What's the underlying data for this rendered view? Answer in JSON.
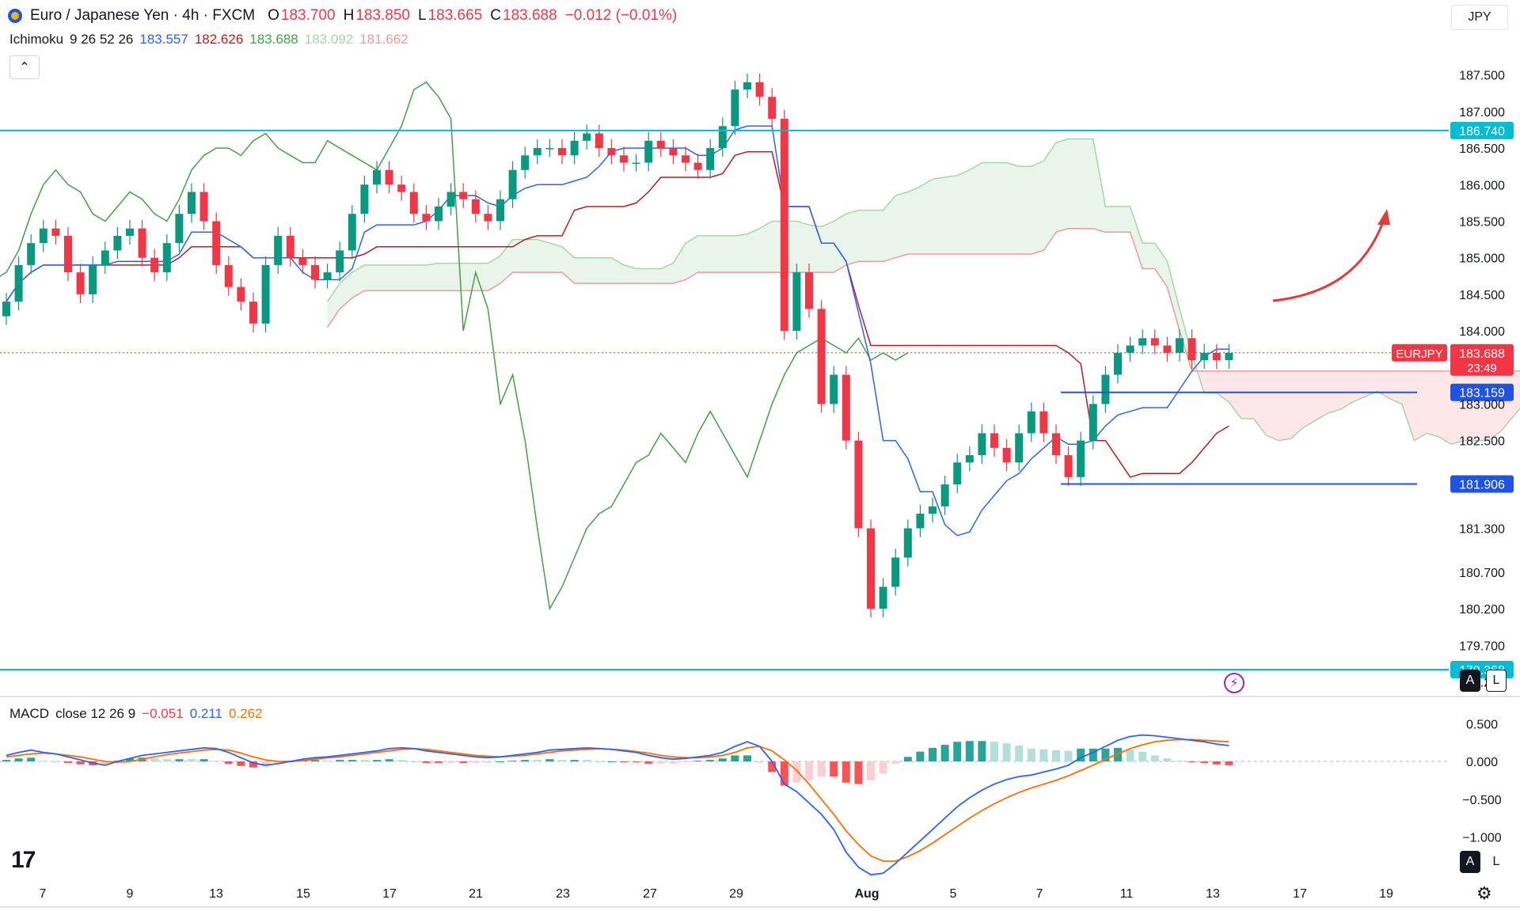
{
  "header": {
    "symbol_title": "Euro / Japanese Yen · 4h · FXCM",
    "open_label": "O",
    "open": "183.700",
    "high_label": "H",
    "high": "183.850",
    "low_label": "L",
    "low": "183.665",
    "close_label": "C",
    "close": "183.688",
    "change": "−0.012 (−0.01%)"
  },
  "currency_button": "JPY",
  "collapse_icon": "chevron-up-icon",
  "indicators": {
    "ichimoku": {
      "name": "Ichimoku",
      "params": "9 26 52 26",
      "v1": "183.557",
      "v2": "182.626",
      "v3": "183.688",
      "v4": "183.092",
      "v5": "181.662"
    },
    "macd": {
      "name": "MACD",
      "params": "close 12 26 9",
      "hist": "−0.051",
      "macd": "0.211",
      "signal": "0.262"
    }
  },
  "buttons": {
    "auto": "A",
    "log": "L"
  },
  "colors": {
    "up": "#089981",
    "down": "#f23645",
    "tenkan": "#2962ff",
    "kijun": "#b71c1c",
    "chikou": "#43a047",
    "span_a": "#a5d6a7",
    "span_b": "#ef9a9a",
    "level_line": "#00bcd4",
    "support_line": "#1e53e5",
    "arrow": "#e53935",
    "macd_line": "#2962ff",
    "signal_line": "#ff6d00"
  },
  "chart_data": [
    {
      "type": "candlestick",
      "title": "Euro / Japanese Yen · 4h · FXCM",
      "ylim": [
        179.0,
        188.2
      ],
      "y_ticks": [
        "187.500",
        "187.000",
        "186.500",
        "186.000",
        "185.500",
        "185.000",
        "184.500",
        "184.000",
        "183.000",
        "182.500",
        "181.300",
        "180.700",
        "180.200",
        "179.700",
        "179.200"
      ],
      "x_ticks": [
        "7",
        "9",
        "13",
        "15",
        "17",
        "21",
        "23",
        "27",
        "29",
        "Aug",
        "5",
        "7",
        "11",
        "13",
        "17",
        "19"
      ],
      "price_label": {
        "symbol": "EURJPY",
        "value": "183.688",
        "countdown": "23:49"
      },
      "horizontal_levels": [
        {
          "value": 186.74,
          "label": "186.740",
          "style": "resistance"
        },
        {
          "value": 179.368,
          "label": "179.368",
          "style": "resistance"
        },
        {
          "value": 183.159,
          "label": "183.159",
          "style": "support"
        },
        {
          "value": 181.906,
          "label": "181.906",
          "style": "support"
        }
      ],
      "close_series": [
        184.4,
        184.9,
        185.2,
        185.4,
        185.3,
        184.8,
        184.5,
        184.9,
        185.1,
        185.3,
        185.4,
        185.0,
        184.8,
        185.2,
        185.6,
        185.9,
        185.5,
        184.9,
        184.6,
        184.4,
        184.1,
        184.9,
        185.3,
        185.0,
        184.9,
        184.7,
        184.8,
        185.1,
        185.6,
        186.0,
        186.2,
        186.0,
        185.9,
        185.6,
        185.5,
        185.7,
        185.9,
        185.8,
        185.6,
        185.5,
        185.8,
        186.2,
        186.4,
        186.5,
        186.5,
        186.4,
        186.6,
        186.7,
        186.5,
        186.4,
        186.3,
        186.3,
        186.6,
        186.5,
        186.4,
        186.3,
        186.2,
        186.5,
        186.8,
        187.3,
        187.4,
        187.2,
        186.9,
        184.0,
        184.8,
        184.3,
        183.0,
        183.4,
        182.5,
        181.3,
        180.2,
        180.5,
        180.9,
        181.3,
        181.5,
        181.6,
        181.9,
        182.2,
        182.3,
        182.6,
        182.4,
        182.2,
        182.6,
        182.9,
        182.6,
        182.3,
        182.0,
        182.5,
        183.0,
        183.4,
        183.7,
        183.8,
        183.9,
        183.8,
        183.7,
        183.9,
        183.6,
        183.7,
        183.6,
        183.7
      ],
      "series": [
        {
          "name": "Ichimoku",
          "values": []
        }
      ]
    },
    {
      "type": "histogram_line",
      "title": "MACD",
      "ylim": [
        -1.55,
        0.65
      ],
      "y_ticks": [
        "0.500",
        "0.000",
        "−0.500",
        "−1.000"
      ],
      "series": [
        {
          "name": "macd",
          "values": [
            0.08,
            0.12,
            0.15,
            0.12,
            0.1,
            0.06,
            0.02,
            -0.02,
            -0.05,
            0.0,
            0.04,
            0.08,
            0.1,
            0.12,
            0.14,
            0.16,
            0.18,
            0.17,
            0.12,
            0.05,
            -0.02,
            -0.05,
            -0.03,
            0.0,
            0.03,
            0.05,
            0.06,
            0.08,
            0.1,
            0.12,
            0.14,
            0.17,
            0.18,
            0.17,
            0.14,
            0.12,
            0.1,
            0.08,
            0.06,
            0.05,
            0.06,
            0.08,
            0.1,
            0.12,
            0.15,
            0.16,
            0.17,
            0.18,
            0.17,
            0.16,
            0.14,
            0.12,
            0.08,
            0.05,
            0.03,
            0.04,
            0.06,
            0.08,
            0.12,
            0.2,
            0.26,
            0.2,
            0.0,
            -0.3,
            -0.4,
            -0.55,
            -0.7,
            -0.9,
            -1.2,
            -1.4,
            -1.5,
            -1.48,
            -1.35,
            -1.2,
            -1.05,
            -0.9,
            -0.75,
            -0.6,
            -0.48,
            -0.38,
            -0.3,
            -0.24,
            -0.2,
            -0.18,
            -0.14,
            -0.1,
            -0.05,
            0.05,
            0.12,
            0.2,
            0.28,
            0.33,
            0.35,
            0.34,
            0.32,
            0.3,
            0.28,
            0.26,
            0.23,
            0.21
          ]
        },
        {
          "name": "signal",
          "values": [
            0.06,
            0.08,
            0.1,
            0.11,
            0.1,
            0.08,
            0.06,
            0.03,
            0.0,
            -0.01,
            0.0,
            0.03,
            0.06,
            0.09,
            0.11,
            0.13,
            0.15,
            0.16,
            0.15,
            0.11,
            0.06,
            0.02,
            0.0,
            0.0,
            0.01,
            0.03,
            0.05,
            0.06,
            0.08,
            0.1,
            0.12,
            0.14,
            0.16,
            0.17,
            0.16,
            0.14,
            0.12,
            0.1,
            0.08,
            0.07,
            0.06,
            0.07,
            0.08,
            0.1,
            0.12,
            0.14,
            0.15,
            0.16,
            0.17,
            0.16,
            0.15,
            0.13,
            0.11,
            0.08,
            0.06,
            0.05,
            0.05,
            0.06,
            0.08,
            0.12,
            0.18,
            0.2,
            0.14,
            0.02,
            -0.12,
            -0.3,
            -0.5,
            -0.7,
            -0.92,
            -1.1,
            -1.25,
            -1.32,
            -1.32,
            -1.26,
            -1.18,
            -1.08,
            -0.97,
            -0.86,
            -0.75,
            -0.65,
            -0.56,
            -0.48,
            -0.41,
            -0.35,
            -0.3,
            -0.25,
            -0.19,
            -0.12,
            -0.05,
            0.03,
            0.1,
            0.17,
            0.22,
            0.26,
            0.28,
            0.29,
            0.29,
            0.28,
            0.27,
            0.26
          ]
        }
      ]
    }
  ]
}
